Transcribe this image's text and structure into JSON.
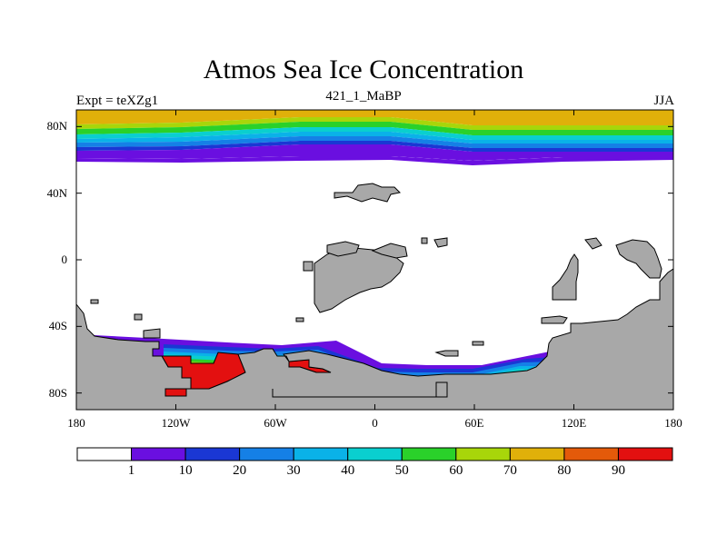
{
  "figure": {
    "title": "Atmos Sea Ice Concentration",
    "left_label": "Expt = teXZg1",
    "center_label": "421_1_MaBP",
    "right_label": "JJA"
  },
  "axes": {
    "lat_ticks": [
      {
        "label": "80N",
        "value": 80
      },
      {
        "label": "40N",
        "value": 40
      },
      {
        "label": "0",
        "value": 0
      },
      {
        "label": "40S",
        "value": -40
      },
      {
        "label": "80S",
        "value": -80
      }
    ],
    "lon_ticks": [
      {
        "label": "180",
        "value": -180
      },
      {
        "label": "120W",
        "value": -120
      },
      {
        "label": "60W",
        "value": -60
      },
      {
        "label": "0",
        "value": 0
      },
      {
        "label": "60E",
        "value": 60
      },
      {
        "label": "120E",
        "value": 120
      },
      {
        "label": "180",
        "value": 180
      }
    ],
    "lat_range": [
      -90,
      90
    ],
    "lon_range": [
      -180,
      180
    ]
  },
  "colorbar": {
    "colors": [
      "#ffffff",
      "#6a0fe0",
      "#1a37d4",
      "#1580e6",
      "#0ab2e8",
      "#0acfcf",
      "#2ad12a",
      "#a8d60a",
      "#e0b00a",
      "#e45a0a",
      "#e31010"
    ],
    "labels": [
      "1",
      "10",
      "20",
      "30",
      "40",
      "50",
      "60",
      "70",
      "80",
      "90"
    ]
  },
  "colors": {
    "land": "#a8a8a8",
    "outline": "#000000"
  }
}
